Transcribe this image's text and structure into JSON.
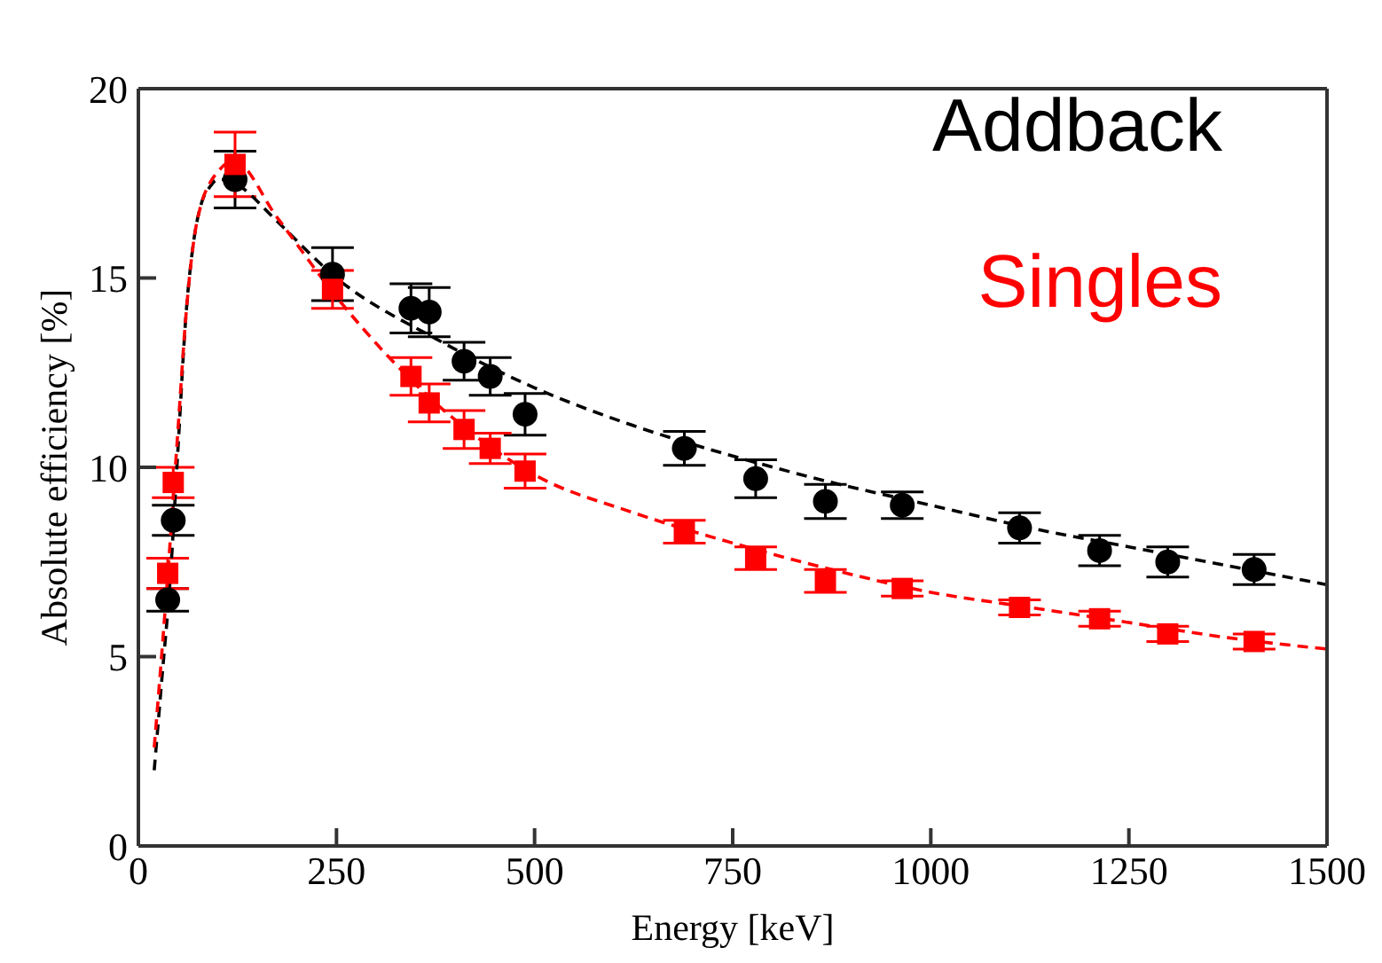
{
  "chart_data": {
    "type": "scatter",
    "xlabel": "Energy [keV]",
    "ylabel": "Absolute efficiency [%]",
    "xlim": [
      0,
      1500
    ],
    "xticks": [
      0,
      250,
      500,
      750,
      1000,
      1250,
      1500
    ],
    "ylim": [
      0,
      20
    ],
    "yticks": [
      0,
      5,
      10,
      15,
      20
    ],
    "grid": false,
    "legend": "top right",
    "series": [
      {
        "name": "Addback",
        "color": "#000000",
        "marker": "circle",
        "x": [
          37,
          44,
          122,
          245,
          344,
          367,
          411,
          444,
          488,
          689,
          779,
          867,
          964,
          1112,
          1213,
          1299,
          1408
        ],
        "values": [
          6.5,
          8.6,
          17.6,
          15.1,
          14.2,
          14.1,
          12.8,
          12.4,
          11.4,
          10.5,
          9.7,
          9.1,
          9.0,
          8.4,
          7.8,
          7.5,
          7.3
        ],
        "errors": [
          0.3,
          0.4,
          0.75,
          0.7,
          0.65,
          0.65,
          0.5,
          0.5,
          0.55,
          0.45,
          0.5,
          0.45,
          0.35,
          0.4,
          0.4,
          0.4,
          0.4
        ]
      },
      {
        "name": "Singles",
        "color": "#ff0000",
        "marker": "square",
        "x": [
          37,
          44,
          122,
          245,
          344,
          367,
          411,
          444,
          488,
          689,
          779,
          867,
          964,
          1112,
          1213,
          1299,
          1408
        ],
        "values": [
          7.2,
          9.6,
          18.0,
          14.7,
          12.4,
          11.7,
          11.0,
          10.5,
          9.9,
          8.3,
          7.6,
          7.0,
          6.8,
          6.3,
          6.0,
          5.6,
          5.4
        ],
        "errors": [
          0.4,
          0.4,
          0.85,
          0.5,
          0.5,
          0.5,
          0.5,
          0.4,
          0.45,
          0.3,
          0.3,
          0.3,
          0.2,
          0.2,
          0.2,
          0.2,
          0.2
        ]
      },
      {
        "type": "line",
        "color": "#000000",
        "line_style": "dashed",
        "marker": "none",
        "x": [
          20,
          30,
          40,
          50,
          60,
          70,
          80,
          90,
          100,
          115,
          130,
          175,
          250,
          375,
          500,
          625,
          750,
          875,
          1000,
          1125,
          1250,
          1375,
          1500
        ],
        "values": [
          2.0,
          4.5,
          7.0,
          10.5,
          14.0,
          16.0,
          17.0,
          17.4,
          17.6,
          17.6,
          17.4,
          16.5,
          15.0,
          13.4,
          12.1,
          11.1,
          10.3,
          9.6,
          9.0,
          8.4,
          7.9,
          7.4,
          6.9
        ]
      },
      {
        "type": "line",
        "color": "#ff0000",
        "line_style": "dashed",
        "marker": "none",
        "x": [
          20,
          30,
          40,
          50,
          60,
          70,
          80,
          90,
          100,
          120,
          175,
          250,
          375,
          500,
          625,
          750,
          875,
          1000,
          1125,
          1250,
          1375,
          1500
        ],
        "values": [
          2.6,
          5.2,
          8.0,
          11.0,
          14.0,
          16.0,
          17.0,
          17.5,
          17.8,
          18.1,
          16.6,
          14.5,
          11.7,
          9.8,
          8.8,
          8.0,
          7.3,
          6.7,
          6.3,
          5.9,
          5.5,
          5.2
        ]
      }
    ]
  }
}
